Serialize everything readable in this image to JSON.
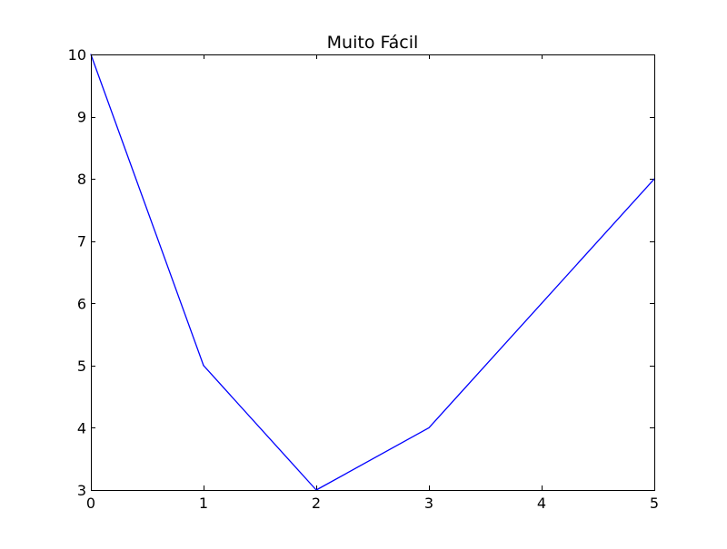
{
  "chart_data": {
    "type": "line",
    "title": "Muito Fácil",
    "xlabel": "",
    "ylabel": "",
    "x": [
      0,
      1,
      2,
      3,
      4,
      5
    ],
    "series": [
      {
        "values": [
          10,
          5,
          3,
          4,
          6,
          8
        ],
        "color": "#0000ff"
      }
    ],
    "xlim": [
      0,
      5
    ],
    "ylim": [
      3,
      10
    ],
    "xticks": [
      "0",
      "1",
      "2",
      "3",
      "4",
      "5"
    ],
    "yticks": [
      "3",
      "4",
      "5",
      "6",
      "7",
      "8",
      "9",
      "10"
    ],
    "grid": false,
    "legend": "none"
  }
}
